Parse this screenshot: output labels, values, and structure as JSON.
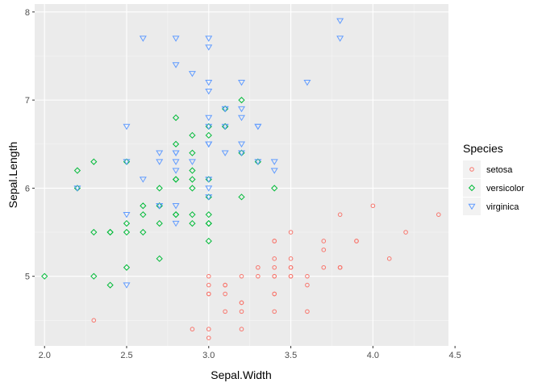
{
  "chart_data": {
    "type": "scatter",
    "xlabel": "Sepal.Width",
    "ylabel": "Sepal.Length",
    "xlim": [
      1.94,
      4.46
    ],
    "ylim": [
      4.21,
      8.09
    ],
    "xticks": [
      2.0,
      2.5,
      3.0,
      3.5,
      4.0,
      4.5
    ],
    "xtick_labels": [
      "2.0",
      "2.5",
      "3.0",
      "3.5",
      "4.0",
      "4.5"
    ],
    "yticks": [
      5,
      6,
      7,
      8
    ],
    "ytick_labels": [
      "5",
      "6",
      "7",
      "8"
    ],
    "grid": true,
    "legend": {
      "title": "Species",
      "position": "right"
    },
    "series": [
      {
        "name": "setosa",
        "color": "#F8766D",
        "marker": "circle",
        "points": [
          [
            3.5,
            5.1
          ],
          [
            3.0,
            4.9
          ],
          [
            3.2,
            4.7
          ],
          [
            3.1,
            4.6
          ],
          [
            3.6,
            5.0
          ],
          [
            3.9,
            5.4
          ],
          [
            3.4,
            4.6
          ],
          [
            3.4,
            5.0
          ],
          [
            2.9,
            4.4
          ],
          [
            3.1,
            4.9
          ],
          [
            3.7,
            5.4
          ],
          [
            3.4,
            4.8
          ],
          [
            3.0,
            4.8
          ],
          [
            3.0,
            4.3
          ],
          [
            4.0,
            5.8
          ],
          [
            4.4,
            5.7
          ],
          [
            3.9,
            5.4
          ],
          [
            3.5,
            5.1
          ],
          [
            3.8,
            5.7
          ],
          [
            3.8,
            5.1
          ],
          [
            3.4,
            5.4
          ],
          [
            3.7,
            5.1
          ],
          [
            3.6,
            4.6
          ],
          [
            3.3,
            5.1
          ],
          [
            3.4,
            4.8
          ],
          [
            3.0,
            5.0
          ],
          [
            3.4,
            5.0
          ],
          [
            3.5,
            5.2
          ],
          [
            3.4,
            5.2
          ],
          [
            3.2,
            4.7
          ],
          [
            3.1,
            4.8
          ],
          [
            3.4,
            5.4
          ],
          [
            4.1,
            5.2
          ],
          [
            4.2,
            5.5
          ],
          [
            3.1,
            4.9
          ],
          [
            3.2,
            5.0
          ],
          [
            3.5,
            5.5
          ],
          [
            3.6,
            4.9
          ],
          [
            3.0,
            4.4
          ],
          [
            3.4,
            5.1
          ],
          [
            3.5,
            5.0
          ],
          [
            2.3,
            4.5
          ],
          [
            3.2,
            4.4
          ],
          [
            3.5,
            5.0
          ],
          [
            3.8,
            5.1
          ],
          [
            3.0,
            4.8
          ],
          [
            3.8,
            5.1
          ],
          [
            3.2,
            4.6
          ],
          [
            3.7,
            5.3
          ],
          [
            3.3,
            5.0
          ]
        ]
      },
      {
        "name": "versicolor",
        "color": "#00BA38",
        "marker": "diamond",
        "points": [
          [
            3.2,
            7.0
          ],
          [
            3.2,
            6.4
          ],
          [
            3.1,
            6.9
          ],
          [
            2.3,
            5.5
          ],
          [
            2.8,
            6.5
          ],
          [
            2.8,
            5.7
          ],
          [
            3.3,
            6.3
          ],
          [
            2.4,
            4.9
          ],
          [
            2.9,
            6.6
          ],
          [
            2.7,
            5.2
          ],
          [
            2.0,
            5.0
          ],
          [
            3.0,
            5.9
          ],
          [
            2.2,
            6.0
          ],
          [
            2.9,
            6.1
          ],
          [
            2.9,
            5.6
          ],
          [
            3.1,
            6.7
          ],
          [
            3.0,
            5.6
          ],
          [
            2.7,
            5.8
          ],
          [
            2.2,
            6.2
          ],
          [
            2.5,
            5.6
          ],
          [
            3.2,
            5.9
          ],
          [
            2.8,
            6.1
          ],
          [
            2.5,
            6.3
          ],
          [
            2.8,
            6.1
          ],
          [
            2.9,
            6.4
          ],
          [
            3.0,
            6.6
          ],
          [
            2.8,
            6.8
          ],
          [
            3.0,
            6.7
          ],
          [
            2.9,
            6.0
          ],
          [
            2.6,
            5.7
          ],
          [
            2.4,
            5.5
          ],
          [
            2.4,
            5.5
          ],
          [
            2.7,
            5.8
          ],
          [
            2.7,
            6.0
          ],
          [
            3.0,
            5.4
          ],
          [
            3.4,
            6.0
          ],
          [
            3.1,
            6.7
          ],
          [
            2.3,
            6.3
          ],
          [
            3.0,
            5.6
          ],
          [
            2.5,
            5.5
          ],
          [
            2.6,
            5.5
          ],
          [
            3.0,
            6.1
          ],
          [
            2.6,
            5.8
          ],
          [
            2.3,
            5.0
          ],
          [
            2.7,
            5.6
          ],
          [
            3.0,
            5.7
          ],
          [
            2.9,
            5.7
          ],
          [
            2.9,
            6.2
          ],
          [
            2.5,
            5.1
          ],
          [
            2.8,
            5.7
          ]
        ]
      },
      {
        "name": "virginica",
        "color": "#619CFF",
        "marker": "triangle-down",
        "points": [
          [
            3.3,
            6.3
          ],
          [
            2.7,
            5.8
          ],
          [
            3.0,
            7.1
          ],
          [
            2.9,
            6.3
          ],
          [
            3.0,
            6.5
          ],
          [
            3.0,
            7.6
          ],
          [
            2.5,
            4.9
          ],
          [
            2.9,
            7.3
          ],
          [
            2.5,
            6.7
          ],
          [
            3.6,
            7.2
          ],
          [
            3.2,
            6.5
          ],
          [
            2.7,
            6.4
          ],
          [
            3.0,
            6.8
          ],
          [
            2.5,
            5.7
          ],
          [
            2.8,
            5.8
          ],
          [
            3.2,
            6.4
          ],
          [
            3.0,
            6.5
          ],
          [
            3.8,
            7.7
          ],
          [
            2.6,
            7.7
          ],
          [
            2.2,
            6.0
          ],
          [
            3.2,
            6.9
          ],
          [
            2.8,
            5.6
          ],
          [
            2.8,
            7.7
          ],
          [
            2.7,
            6.3
          ],
          [
            3.3,
            6.7
          ],
          [
            3.2,
            7.2
          ],
          [
            2.8,
            6.2
          ],
          [
            3.0,
            6.1
          ],
          [
            2.8,
            6.4
          ],
          [
            3.0,
            7.2
          ],
          [
            2.8,
            7.4
          ],
          [
            3.8,
            7.9
          ],
          [
            2.8,
            6.4
          ],
          [
            2.8,
            6.3
          ],
          [
            2.6,
            6.1
          ],
          [
            3.0,
            7.7
          ],
          [
            3.4,
            6.3
          ],
          [
            3.1,
            6.4
          ],
          [
            3.0,
            6.0
          ],
          [
            3.1,
            6.9
          ],
          [
            3.1,
            6.7
          ],
          [
            3.1,
            6.9
          ],
          [
            2.7,
            5.8
          ],
          [
            3.2,
            6.8
          ],
          [
            3.3,
            6.7
          ],
          [
            3.0,
            6.7
          ],
          [
            2.5,
            6.3
          ],
          [
            3.0,
            6.5
          ],
          [
            3.4,
            6.2
          ],
          [
            3.0,
            5.9
          ]
        ]
      }
    ]
  }
}
